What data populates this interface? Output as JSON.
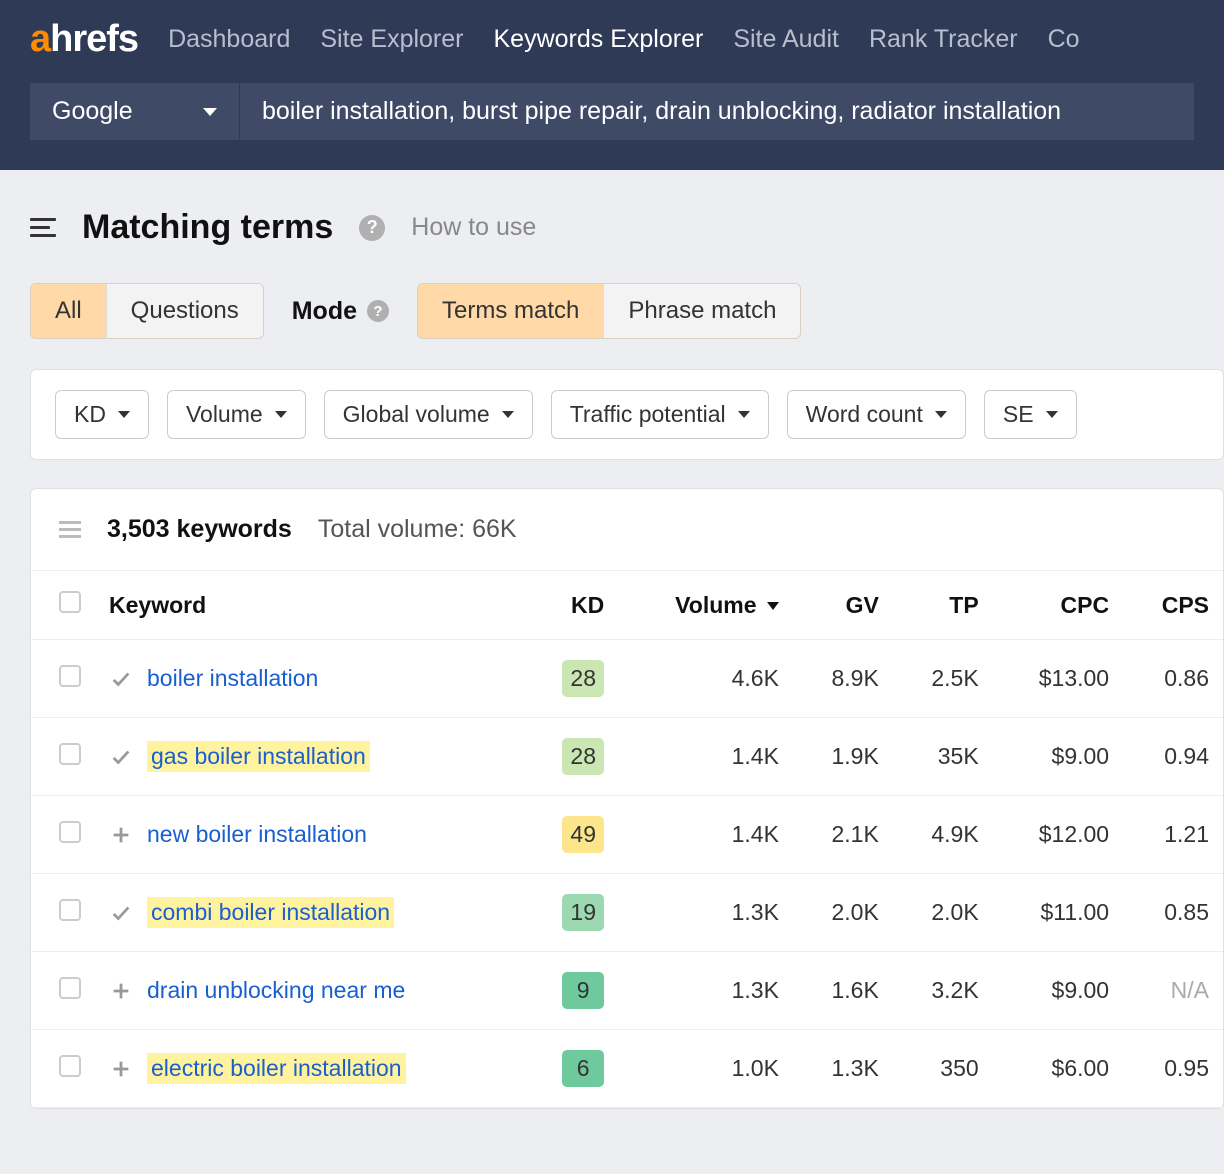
{
  "nav": {
    "items": [
      "Dashboard",
      "Site Explorer",
      "Keywords Explorer",
      "Site Audit",
      "Rank Tracker",
      "Co"
    ],
    "active_index": 2
  },
  "search": {
    "engine": "Google",
    "query": "boiler installation, burst pipe repair, drain unblocking, radiator installation"
  },
  "page": {
    "title": "Matching terms",
    "how_to_use": "How to use"
  },
  "toggles": {
    "filter": {
      "options": [
        "All",
        "Questions"
      ],
      "active_index": 0
    },
    "mode_label": "Mode",
    "mode": {
      "options": [
        "Terms match",
        "Phrase match"
      ],
      "active_index": 0
    }
  },
  "filters": [
    "KD",
    "Volume",
    "Global volume",
    "Traffic potential",
    "Word count",
    "SE"
  ],
  "summary": {
    "count": "3,503 keywords",
    "total_volume": "Total volume: 66K"
  },
  "columns": [
    "",
    "Keyword",
    "KD",
    "Volume",
    "GV",
    "TP",
    "CPC",
    "CPS"
  ],
  "sort_col_index": 3,
  "kd_colors": {
    "28": "#c9e6b3",
    "49": "#fce58b",
    "19": "#9cd9b0",
    "9": "#6ec99c",
    "6": "#6ec99c"
  },
  "rows": [
    {
      "action": "check",
      "keyword": "boiler installation",
      "hl": false,
      "kd": "28",
      "volume": "4.6K",
      "gv": "8.9K",
      "tp": "2.5K",
      "cpc": "$13.00",
      "cps": "0.86"
    },
    {
      "action": "check",
      "keyword": "gas boiler installation",
      "hl": true,
      "kd": "28",
      "volume": "1.4K",
      "gv": "1.9K",
      "tp": "35K",
      "cpc": "$9.00",
      "cps": "0.94"
    },
    {
      "action": "plus",
      "keyword": "new boiler installation",
      "hl": false,
      "kd": "49",
      "volume": "1.4K",
      "gv": "2.1K",
      "tp": "4.9K",
      "cpc": "$12.00",
      "cps": "1.21"
    },
    {
      "action": "check",
      "keyword": "combi boiler installation",
      "hl": true,
      "kd": "19",
      "volume": "1.3K",
      "gv": "2.0K",
      "tp": "2.0K",
      "cpc": "$11.00",
      "cps": "0.85"
    },
    {
      "action": "plus",
      "keyword": "drain unblocking near me",
      "hl": false,
      "kd": "9",
      "volume": "1.3K",
      "gv": "1.6K",
      "tp": "3.2K",
      "cpc": "$9.00",
      "cps": "N/A"
    },
    {
      "action": "plus",
      "keyword": "electric boiler installation",
      "hl": true,
      "kd": "6",
      "volume": "1.0K",
      "gv": "1.3K",
      "tp": "350",
      "cpc": "$6.00",
      "cps": "0.95"
    }
  ]
}
